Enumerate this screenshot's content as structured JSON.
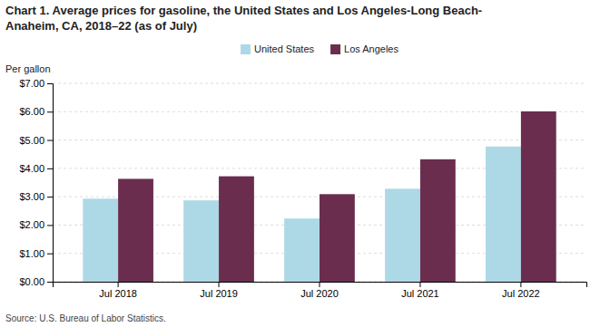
{
  "chart_data": {
    "type": "bar",
    "title": "Chart 1. Average prices for gasoline, the United States and Los Angeles-Long Beach-\nAnaheim, CA, 2018–22 (as of July)",
    "ylabel": "Per gallon",
    "source": "Source: U.S. Bureau of Labor Statistics.",
    "categories": [
      "Jul 2018",
      "Jul 2019",
      "Jul 2020",
      "Jul 2021",
      "Jul 2022"
    ],
    "series": [
      {
        "name": "United States",
        "color": "#add8e6",
        "values": [
          2.93,
          2.87,
          2.23,
          3.28,
          4.77
        ]
      },
      {
        "name": "Los Angeles",
        "color": "#6b2d4e",
        "values": [
          3.63,
          3.72,
          3.09,
          4.32,
          6.01
        ]
      }
    ],
    "ylim": [
      0,
      7.0
    ],
    "yticks": [
      {
        "value": 0.0,
        "label": "$0.00"
      },
      {
        "value": 1.0,
        "label": "$1.00"
      },
      {
        "value": 2.0,
        "label": "$2.00"
      },
      {
        "value": 3.0,
        "label": "$3.00"
      },
      {
        "value": 4.0,
        "label": "$4.00"
      },
      {
        "value": 5.0,
        "label": "$5.00"
      },
      {
        "value": 6.0,
        "label": "$6.00"
      },
      {
        "value": 7.0,
        "label": "$7.00"
      }
    ],
    "grid": true,
    "legend": "top"
  }
}
